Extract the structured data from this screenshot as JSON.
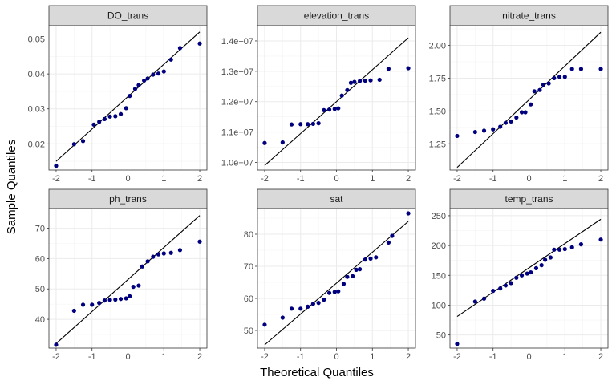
{
  "chart_data": {
    "type": "scatter",
    "xlabel": "Theoretical Quantiles",
    "ylabel": "Sample Quantiles",
    "point_color": "#00007F",
    "line_color": "#000000",
    "strip_color": "#D9D9D9",
    "grid": true,
    "panels": [
      {
        "title": "DO_trans",
        "xlim": [
          -2.2,
          2.2
        ],
        "ylim": [
          0.0125,
          0.0538
        ],
        "xticks": [
          -2,
          -1,
          0,
          1,
          2
        ],
        "xtick_labels": [
          "-2",
          "-1",
          "0",
          "1",
          "2"
        ],
        "yticks": [
          0.02,
          0.03,
          0.04,
          0.05
        ],
        "ytick_labels": [
          "0.02",
          "0.03",
          "0.04",
          "0.05"
        ],
        "line": [
          [
            -2,
            0.015
          ],
          [
            2,
            0.052
          ]
        ],
        "points": [
          [
            -2,
            0.0137
          ],
          [
            -1.5,
            0.0199
          ],
          [
            -1.25,
            0.0208
          ],
          [
            -0.95,
            0.0255
          ],
          [
            -0.8,
            0.0263
          ],
          [
            -0.65,
            0.0271
          ],
          [
            -0.5,
            0.0278
          ],
          [
            -0.35,
            0.0279
          ],
          [
            -0.2,
            0.0285
          ],
          [
            -0.05,
            0.0302
          ],
          [
            0.05,
            0.0337
          ],
          [
            0.2,
            0.0357
          ],
          [
            0.3,
            0.0368
          ],
          [
            0.45,
            0.0381
          ],
          [
            0.55,
            0.0387
          ],
          [
            0.7,
            0.0398
          ],
          [
            0.85,
            0.0401
          ],
          [
            1,
            0.0407
          ],
          [
            1.2,
            0.0441
          ],
          [
            1.45,
            0.0474
          ],
          [
            2,
            0.0487
          ]
        ]
      },
      {
        "title": "elevation_trans",
        "xlim": [
          -2.2,
          2.2
        ],
        "ylim": [
          9750000,
          14500000
        ],
        "xticks": [
          -2,
          -1,
          0,
          1,
          2
        ],
        "xtick_labels": [
          "-2",
          "-1",
          "0",
          "1",
          "2"
        ],
        "yticks": [
          10000000,
          11000000,
          12000000,
          13000000,
          14000000
        ],
        "ytick_labels": [
          "1.0e+07",
          "1.1e+07",
          "1.2e+07",
          "1.3e+07",
          "1.4e+07"
        ],
        "line": [
          [
            -2,
            9900000
          ],
          [
            2,
            14100000
          ]
        ],
        "points": [
          [
            -2,
            10640000
          ],
          [
            -1.5,
            10660000
          ],
          [
            -1.25,
            11250000
          ],
          [
            -1,
            11260000
          ],
          [
            -0.8,
            11260000
          ],
          [
            -0.65,
            11270000
          ],
          [
            -0.5,
            11290000
          ],
          [
            -0.35,
            11720000
          ],
          [
            -0.2,
            11740000
          ],
          [
            -0.05,
            11760000
          ],
          [
            0.05,
            11780000
          ],
          [
            0.15,
            12200000
          ],
          [
            0.3,
            12380000
          ],
          [
            0.4,
            12620000
          ],
          [
            0.5,
            12650000
          ],
          [
            0.65,
            12680000
          ],
          [
            0.8,
            12690000
          ],
          [
            0.95,
            12700000
          ],
          [
            1.2,
            12720000
          ],
          [
            1.45,
            13080000
          ],
          [
            2,
            13100000
          ]
        ]
      },
      {
        "title": "nitrate_trans",
        "xlim": [
          -2.2,
          2.2
        ],
        "ylim": [
          1.05,
          2.15
        ],
        "xticks": [
          -2,
          -1,
          0,
          1,
          2
        ],
        "xtick_labels": [
          "-2",
          "-1",
          "0",
          "1",
          "2"
        ],
        "yticks": [
          1.25,
          1.5,
          1.75,
          2.0
        ],
        "ytick_labels": [
          "1.25",
          "1.50",
          "1.75",
          "2.00"
        ],
        "line": [
          [
            -2,
            1.07
          ],
          [
            2,
            2.1
          ]
        ],
        "points": [
          [
            -2,
            1.31
          ],
          [
            -1.5,
            1.34
          ],
          [
            -1.25,
            1.35
          ],
          [
            -1,
            1.36
          ],
          [
            -0.8,
            1.38
          ],
          [
            -0.65,
            1.41
          ],
          [
            -0.5,
            1.42
          ],
          [
            -0.35,
            1.45
          ],
          [
            -0.2,
            1.49
          ],
          [
            -0.1,
            1.49
          ],
          [
            0.05,
            1.55
          ],
          [
            0.15,
            1.65
          ],
          [
            0.3,
            1.66
          ],
          [
            0.4,
            1.7
          ],
          [
            0.55,
            1.71
          ],
          [
            0.7,
            1.75
          ],
          [
            0.85,
            1.76
          ],
          [
            1,
            1.76
          ],
          [
            1.2,
            1.82
          ],
          [
            1.45,
            1.82
          ],
          [
            2,
            1.82
          ]
        ]
      },
      {
        "title": "ph_trans",
        "xlim": [
          -2.2,
          2.2
        ],
        "ylim": [
          30.5,
          76.5
        ],
        "xticks": [
          -2,
          -1,
          0,
          1,
          2
        ],
        "xtick_labels": [
          "-2",
          "-1",
          "0",
          "1",
          "2"
        ],
        "yticks": [
          30,
          40,
          50,
          60,
          70
        ],
        "ytick_labels": [
          "30",
          "40",
          "50",
          "60",
          "70"
        ],
        "line": [
          [
            -2,
            32
          ],
          [
            2,
            74.2
          ]
        ],
        "points": [
          [
            -2,
            31.6
          ],
          [
            -1.5,
            42.8
          ],
          [
            -1.25,
            44.8
          ],
          [
            -1,
            44.8
          ],
          [
            -0.8,
            45.4
          ],
          [
            -0.65,
            46.2
          ],
          [
            -0.5,
            46.4
          ],
          [
            -0.35,
            46.5
          ],
          [
            -0.2,
            46.7
          ],
          [
            -0.05,
            46.9
          ],
          [
            0.05,
            47.6
          ],
          [
            0.15,
            50.7
          ],
          [
            0.3,
            51.1
          ],
          [
            0.4,
            57.4
          ],
          [
            0.55,
            59.1
          ],
          [
            0.7,
            60.6
          ],
          [
            0.85,
            61.4
          ],
          [
            1,
            61.7
          ],
          [
            1.2,
            61.9
          ],
          [
            1.45,
            62.8
          ],
          [
            2,
            65.6
          ]
        ]
      },
      {
        "title": "sat",
        "xlim": [
          -2.2,
          2.2
        ],
        "ylim": [
          44.5,
          88
        ],
        "xticks": [
          -2,
          -1,
          0,
          1,
          2
        ],
        "xtick_labels": [
          "-2",
          "-1",
          "0",
          "1",
          "2"
        ],
        "yticks": [
          50,
          60,
          70,
          80
        ],
        "ytick_labels": [
          "50",
          "60",
          "70",
          "80"
        ],
        "line": [
          [
            -2,
            45.5
          ],
          [
            2,
            84
          ]
        ],
        "points": [
          [
            -2,
            51.8
          ],
          [
            -1.5,
            54
          ],
          [
            -1.25,
            56.8
          ],
          [
            -1,
            56.8
          ],
          [
            -0.8,
            57.4
          ],
          [
            -0.65,
            58.3
          ],
          [
            -0.5,
            58.6
          ],
          [
            -0.35,
            59.6
          ],
          [
            -0.2,
            61.7
          ],
          [
            -0.05,
            62
          ],
          [
            0.05,
            62.2
          ],
          [
            0.2,
            64.5
          ],
          [
            0.3,
            66.7
          ],
          [
            0.45,
            66.9
          ],
          [
            0.55,
            68.9
          ],
          [
            0.65,
            69.1
          ],
          [
            0.8,
            72.1
          ],
          [
            0.95,
            72.4
          ],
          [
            1.1,
            72.8
          ],
          [
            1.45,
            77.4
          ],
          [
            1.55,
            79.5
          ],
          [
            2,
            86.5
          ]
        ]
      },
      {
        "title": "temp_trans",
        "xlim": [
          -2.2,
          2.2
        ],
        "ylim": [
          28,
          262
        ],
        "xticks": [
          -2,
          -1,
          0,
          1,
          2
        ],
        "xtick_labels": [
          "-2",
          "-1",
          "0",
          "1",
          "2"
        ],
        "yticks": [
          50,
          100,
          150,
          200,
          250
        ],
        "ytick_labels": [
          "50",
          "100",
          "150",
          "200",
          "250"
        ],
        "line": [
          [
            -2,
            81
          ],
          [
            2,
            244
          ]
        ],
        "points": [
          [
            -2,
            35
          ],
          [
            -1.5,
            106
          ],
          [
            -1.25,
            111
          ],
          [
            -1,
            124
          ],
          [
            -0.8,
            128
          ],
          [
            -0.65,
            133
          ],
          [
            -0.5,
            137
          ],
          [
            -0.35,
            146
          ],
          [
            -0.2,
            150
          ],
          [
            -0.05,
            153
          ],
          [
            0.05,
            155
          ],
          [
            0.2,
            162
          ],
          [
            0.35,
            167
          ],
          [
            0.45,
            176
          ],
          [
            0.6,
            180
          ],
          [
            0.7,
            193
          ],
          [
            0.85,
            193
          ],
          [
            1,
            194
          ],
          [
            1.2,
            197
          ],
          [
            1.45,
            202
          ],
          [
            2,
            210
          ]
        ]
      }
    ]
  }
}
